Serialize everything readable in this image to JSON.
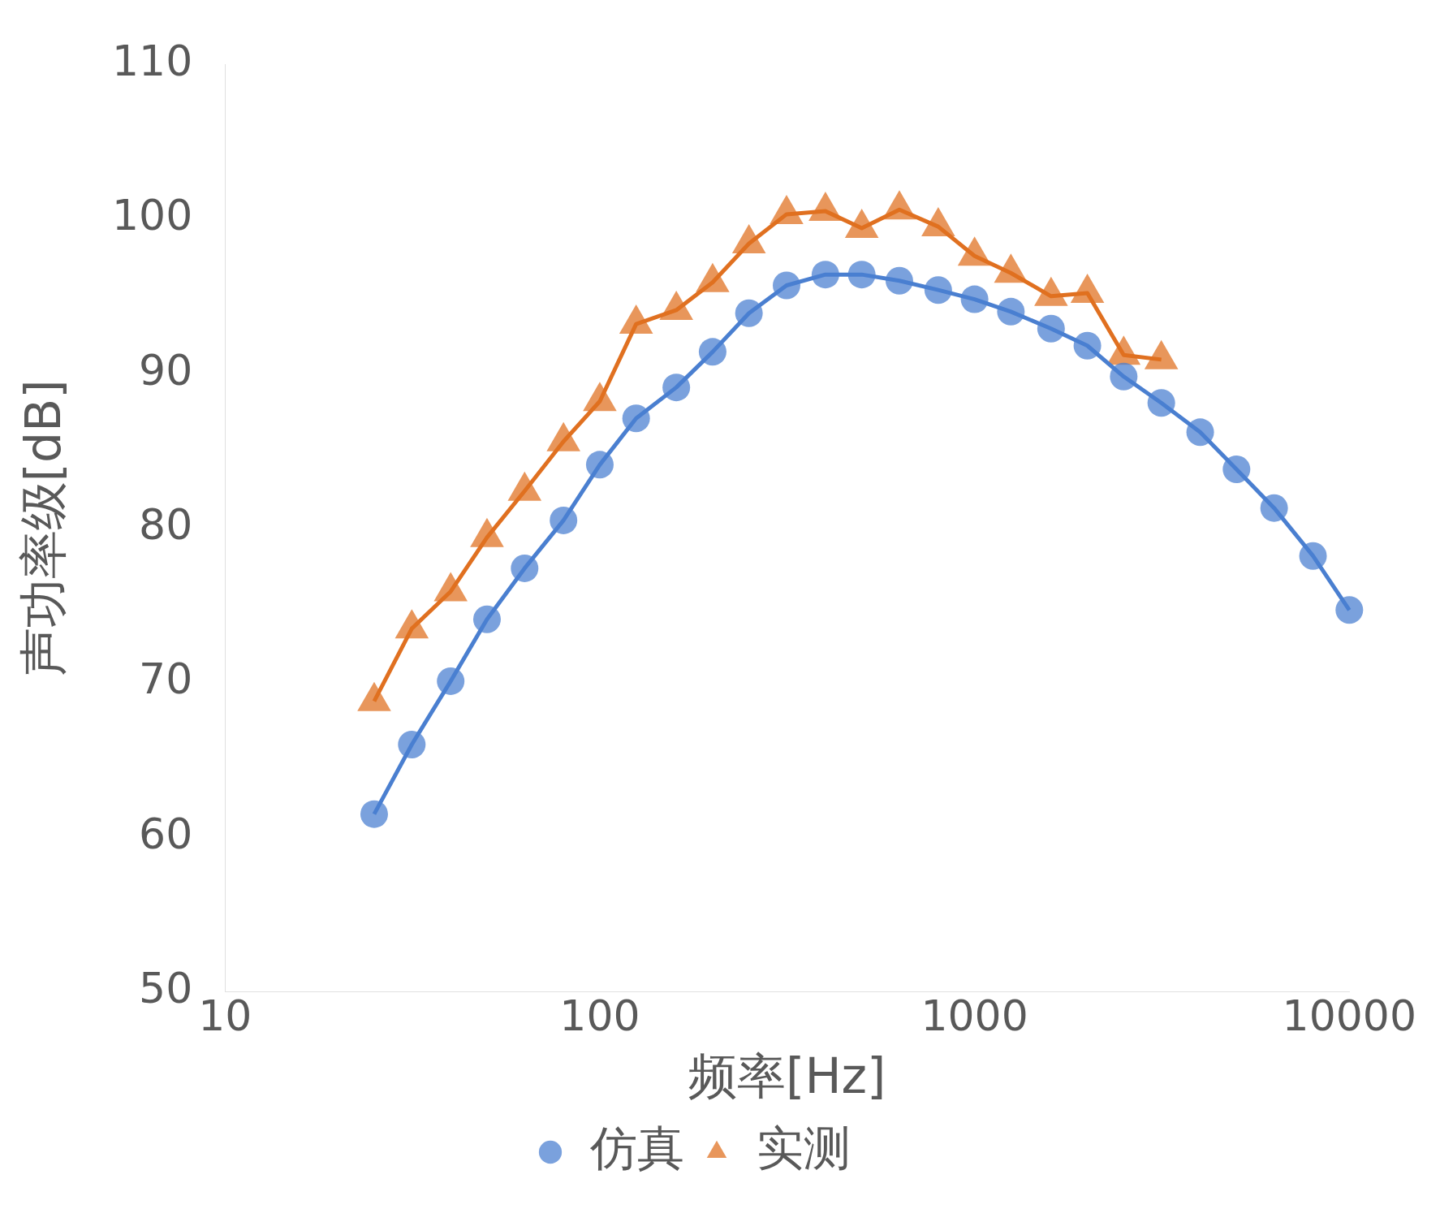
{
  "chart_data": {
    "type": "line",
    "xlabel": "频率[Hz]",
    "ylabel": "声功率级[dB]",
    "log": "x",
    "xlim": [
      10,
      10000
    ],
    "xticks": [
      10,
      100,
      1000,
      10000
    ],
    "ylim": [
      50,
      110
    ],
    "yticks": [
      50,
      60,
      70,
      80,
      90,
      100,
      110
    ],
    "grid": false,
    "legend": "bottom",
    "series": [
      {
        "name": "仿真",
        "color": "#4a7fd0",
        "marker": "circle",
        "x": [
          25,
          31.5,
          40,
          50,
          63,
          80,
          100,
          125,
          160,
          200,
          250,
          315,
          400,
          500,
          630,
          800,
          1000,
          1250,
          1600,
          2000,
          2500,
          3150,
          4000,
          5000,
          6300,
          8000,
          10000
        ],
        "values": [
          61.5,
          66,
          70.1,
          74.1,
          77.4,
          80.5,
          84.1,
          87.1,
          89.1,
          91.4,
          93.9,
          95.7,
          96.4,
          96.4,
          96,
          95.4,
          94.8,
          94,
          92.9,
          91.8,
          89.8,
          88.1,
          86.2,
          83.8,
          81.3,
          78.2,
          74.7
        ]
      },
      {
        "name": "实测",
        "color": "#e07020",
        "marker": "triangle",
        "x": [
          25,
          31.5,
          40,
          50,
          63,
          80,
          100,
          125,
          160,
          200,
          250,
          315,
          400,
          500,
          630,
          800,
          1000,
          1250,
          1600,
          2000,
          2500,
          3150
        ],
        "values": [
          68.8,
          73.5,
          75.9,
          79.4,
          82.4,
          85.6,
          88.2,
          93.2,
          94.1,
          95.9,
          98.4,
          100.3,
          100.5,
          99.4,
          100.6,
          99.5,
          97.6,
          96.5,
          95,
          95.2,
          91.2,
          90.9
        ]
      }
    ]
  }
}
